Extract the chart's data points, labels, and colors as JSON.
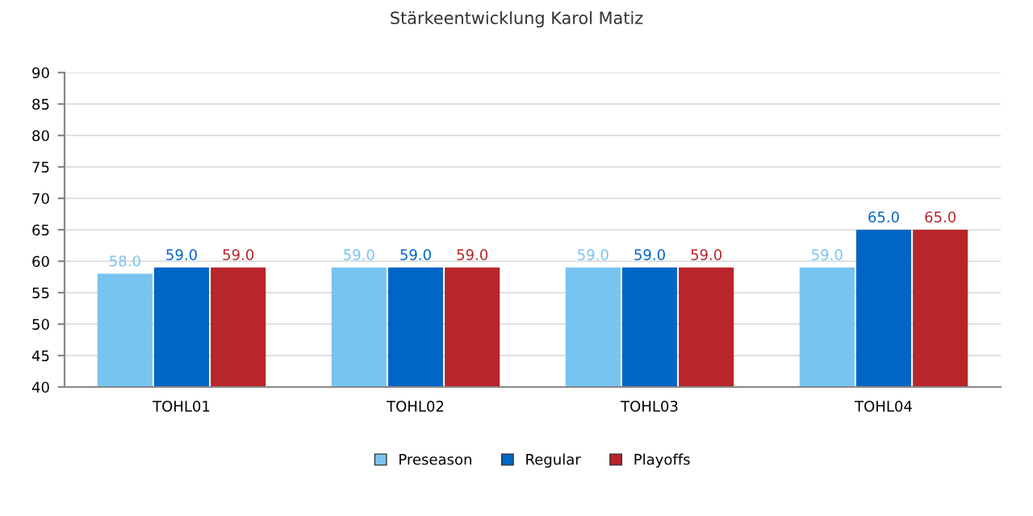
{
  "chart_data": {
    "type": "bar",
    "title": "Stärkeentwicklung Karol Matiz",
    "categories": [
      "TOHL01",
      "TOHL02",
      "TOHL03",
      "TOHL04"
    ],
    "series": [
      {
        "name": "Preseason",
        "color": "#77c4f0",
        "values": [
          58.0,
          59.0,
          59.0,
          59.0
        ],
        "value_labels": [
          "58.0",
          "59.0",
          "59.0",
          "59.0"
        ]
      },
      {
        "name": "Regular",
        "color": "#0066c6",
        "values": [
          59.0,
          59.0,
          59.0,
          65.0
        ],
        "value_labels": [
          "59.0",
          "59.0",
          "59.0",
          "65.0"
        ]
      },
      {
        "name": "Playoffs",
        "color": "#b8252a",
        "values": [
          59.0,
          59.0,
          59.0,
          65.0
        ],
        "value_labels": [
          "59.0",
          "59.0",
          "59.0",
          "65.0"
        ]
      }
    ],
    "ylim": [
      40,
      90
    ],
    "yticks": [
      40,
      45,
      50,
      55,
      60,
      65,
      70,
      75,
      80,
      85,
      90
    ],
    "grid": "y",
    "legend": "bottom"
  }
}
